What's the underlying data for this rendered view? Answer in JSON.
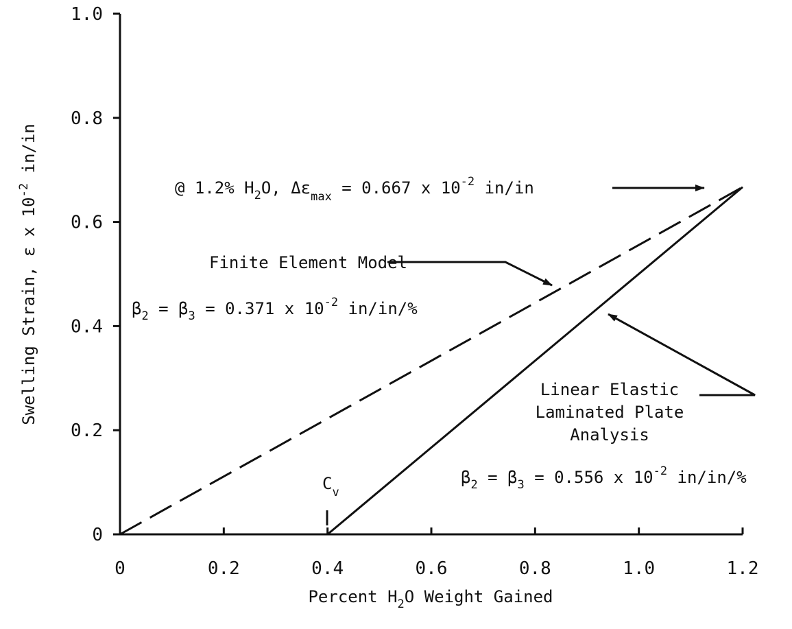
{
  "chart_data": {
    "type": "line",
    "xlabel": {
      "pre": "Percent H",
      "sub": "2",
      "post": "O Weight Gained"
    },
    "ylabel": {
      "pre": "Swelling Strain, ε x 10",
      "sup": "-2",
      "post": " in/in"
    },
    "xlim": [
      0,
      1.2
    ],
    "ylim": [
      0,
      1.0
    ],
    "x_ticks": [
      0,
      0.2,
      0.4,
      0.6,
      0.8,
      1.0,
      1.2
    ],
    "x_tick_labels": [
      "0",
      "0.2",
      "0.4",
      "0.6",
      "0.8",
      "1.0",
      "1.2"
    ],
    "y_ticks": [
      0,
      0.2,
      0.4,
      0.6,
      0.8,
      1.0
    ],
    "y_tick_labels": [
      "0",
      "0.2",
      "0.4",
      "0.6",
      "0.8",
      "1.0"
    ],
    "series": [
      {
        "name": "Finite Element Model",
        "style": "dashed",
        "x": [
          0,
          1.2
        ],
        "y": [
          0,
          0.667
        ]
      },
      {
        "name": "Linear Elastic Laminated Plate Analysis",
        "style": "solid",
        "x": [
          0.4,
          1.2
        ],
        "y": [
          0,
          0.667
        ]
      }
    ],
    "annotations": {
      "max": {
        "t1": "@ 1.2% H",
        "s1": "2",
        "t2": "O, Δε",
        "s2": "max",
        "t3": " = 0.667 x 10",
        "sup": "-2",
        "t4": " in/in"
      },
      "fem": "Finite Element Model",
      "beta_fem": {
        "a": "β",
        "as": "2",
        "b": " = β",
        "bs": "3",
        "c": " = 0.371 x 10",
        "sup": "-2",
        "d": " in/in/%"
      },
      "lin1": "Linear Elastic",
      "lin2": "Laminated Plate",
      "lin3": "Analysis",
      "beta_lin": {
        "a": "β",
        "as": "2",
        "b": " = β",
        "bs": "3",
        "c": " = 0.556 x 10",
        "sup": "-2",
        "d": " in/in/%"
      },
      "cv": {
        "c": "C",
        "sub": "v"
      }
    }
  }
}
